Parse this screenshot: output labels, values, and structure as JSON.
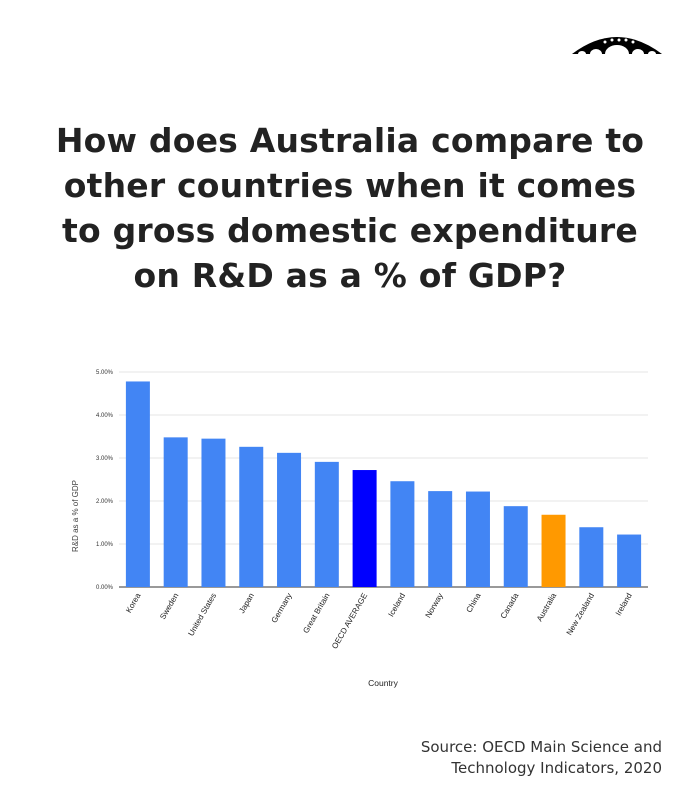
{
  "title": "How does Australia compare to other countries when it comes to gross domestic expenditure on R&D as a % of GDP?",
  "source": "Source: OECD Main Science and Technology Indicators, 2020",
  "logo_icon": "bridge-logo-icon",
  "chart_data": {
    "type": "bar",
    "xlabel": "Country",
    "ylabel": "R&D as a % of GDP",
    "ylim": [
      0,
      5
    ],
    "yticks": [
      "0.00%",
      "1.00%",
      "2.00%",
      "3.00%",
      "4.00%",
      "5.00%"
    ],
    "grid": true,
    "categories": [
      "Korea",
      "Sweden",
      "United States",
      "Japan",
      "Germany",
      "Great Britain",
      "OECD AVERAGE",
      "Iceland",
      "Norway",
      "China",
      "Canada",
      "Australia",
      "New Zealand",
      "Ireland"
    ],
    "values": [
      4.78,
      3.48,
      3.45,
      3.26,
      3.12,
      2.91,
      2.72,
      2.46,
      2.23,
      2.22,
      1.88,
      1.68,
      1.39,
      1.22
    ],
    "colors": [
      "#4285f4",
      "#4285f4",
      "#4285f4",
      "#4285f4",
      "#4285f4",
      "#4285f4",
      "#0000ff",
      "#4285f4",
      "#4285f4",
      "#4285f4",
      "#4285f4",
      "#ff9900",
      "#4285f4",
      "#4285f4"
    ]
  }
}
